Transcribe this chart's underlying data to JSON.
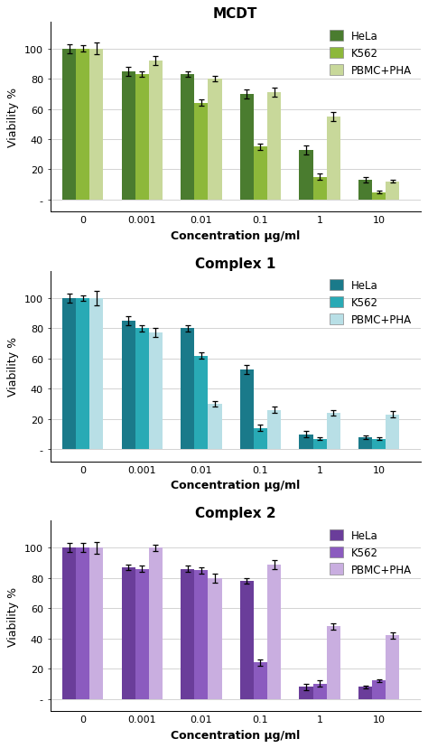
{
  "charts": [
    {
      "title": "MCDT",
      "colors": [
        "#4a7c2f",
        "#8db83a",
        "#c8d89a"
      ],
      "legend_labels": [
        "HeLa",
        "K562",
        "PBMC+PHA"
      ],
      "x_labels": [
        "0",
        "0.001",
        "0.01",
        "0.1",
        "1",
        "10"
      ],
      "hela": [
        100,
        85,
        83,
        70,
        33,
        13
      ],
      "k562": [
        100,
        83,
        64,
        35,
        15,
        5
      ],
      "pbmc": [
        100,
        92,
        80,
        71,
        55,
        12
      ],
      "hela_err": [
        3,
        3,
        2,
        3,
        3,
        2
      ],
      "k562_err": [
        2,
        2,
        2,
        2,
        2,
        1
      ],
      "pbmc_err": [
        4,
        3,
        2,
        3,
        3,
        1
      ]
    },
    {
      "title": "Complex 1",
      "colors": [
        "#1a7a8a",
        "#29aab5",
        "#b8dfe6"
      ],
      "legend_labels": [
        "HeLa",
        "K562",
        "PBMC+PHA"
      ],
      "x_labels": [
        "0",
        "0.001",
        "0.01",
        "0.1",
        "1",
        "10"
      ],
      "hela": [
        100,
        85,
        80,
        53,
        10,
        8
      ],
      "k562": [
        100,
        80,
        62,
        14,
        7,
        7
      ],
      "pbmc": [
        100,
        77,
        30,
        26,
        24,
        23
      ],
      "hela_err": [
        3,
        3,
        2,
        3,
        2,
        1
      ],
      "k562_err": [
        2,
        2,
        2,
        2,
        1,
        1
      ],
      "pbmc_err": [
        5,
        3,
        2,
        2,
        2,
        2
      ]
    },
    {
      "title": "Complex 2",
      "colors": [
        "#6a3d9a",
        "#8b5bbf",
        "#c9aee0"
      ],
      "legend_labels": [
        "HeLa",
        "K562",
        "PBMC+PHA"
      ],
      "x_labels": [
        "0",
        "0.001",
        "0.01",
        "0.1",
        "1",
        "10"
      ],
      "hela": [
        100,
        87,
        86,
        78,
        8,
        8
      ],
      "k562": [
        100,
        86,
        85,
        24,
        10,
        12
      ],
      "pbmc": [
        100,
        100,
        80,
        89,
        48,
        42
      ],
      "hela_err": [
        3,
        2,
        2,
        2,
        2,
        1
      ],
      "k562_err": [
        3,
        2,
        2,
        2,
        2,
        1
      ],
      "pbmc_err": [
        4,
        2,
        3,
        3,
        2,
        2
      ]
    }
  ],
  "ylabel": "Viability %",
  "xlabel": "Concentration µg/ml",
  "ylim": [
    -8,
    118
  ],
  "yticks": [
    0,
    20,
    40,
    60,
    80,
    100
  ],
  "ytick_labels": [
    "-",
    "20",
    "40",
    "60",
    "80",
    "100"
  ],
  "background_color": "#ffffff",
  "bar_width": 0.23,
  "title_fontsize": 11,
  "axis_label_fontsize": 9,
  "tick_fontsize": 8,
  "legend_fontsize": 8.5,
  "figsize": [
    4.74,
    8.29
  ],
  "dpi": 100
}
